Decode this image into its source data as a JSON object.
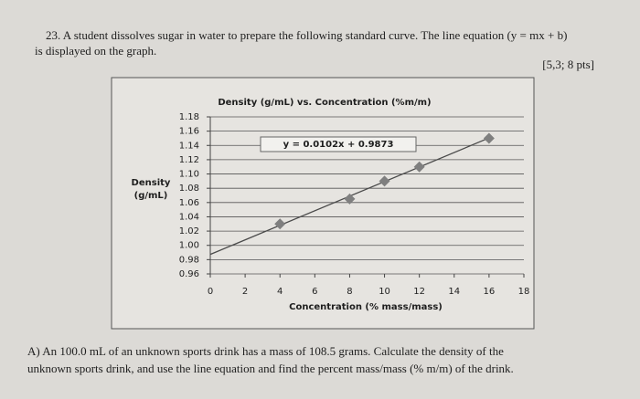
{
  "question": {
    "line1": "23. A student dissolves sugar in water to prepare the following standard curve. The line equation (y = mx + b)",
    "line2": "is displayed on the graph.",
    "points": "[5,3; 8 pts]",
    "part_a": [
      "A) An 100.0 mL of an unknown sports drink has a mass of 108.5 grams. Calculate the density of the",
      "unknown sports drink, and use the line equation and find the percent mass/mass (% m/m) of the drink."
    ]
  },
  "chart_data": {
    "type": "scatter",
    "title": "Density (g/mL) vs. Concentration (%m/m)",
    "x_label": "Concentration (% mass/mass)",
    "y_label": [
      "Density",
      "(g/mL)"
    ],
    "x": [
      4,
      8,
      10,
      12,
      16
    ],
    "series": [
      {
        "color": "#7f7f7f",
        "values": [
          1.03,
          1.065,
          1.09,
          1.11,
          1.15
        ]
      }
    ],
    "trendline": {
      "label": "y = 0.0102x + 0.9873",
      "slope": 0.0102,
      "intercept": 0.9873,
      "x_range": [
        0,
        16
      ],
      "color": "#4a4a4a"
    },
    "xlim": [
      0,
      18
    ],
    "xticks": [
      0,
      2,
      4,
      6,
      8,
      10,
      12,
      14,
      16,
      18
    ],
    "ylim": [
      0.96,
      1.18
    ],
    "yticks": [
      0.96,
      0.98,
      {
        "value": 1,
        "label": "1.00"
      },
      1.02,
      1.04,
      1.06,
      1.08,
      {
        "value": 1.1,
        "label": "1.10"
      },
      1.12,
      1.14,
      1.16,
      1.18
    ],
    "grid": true
  }
}
